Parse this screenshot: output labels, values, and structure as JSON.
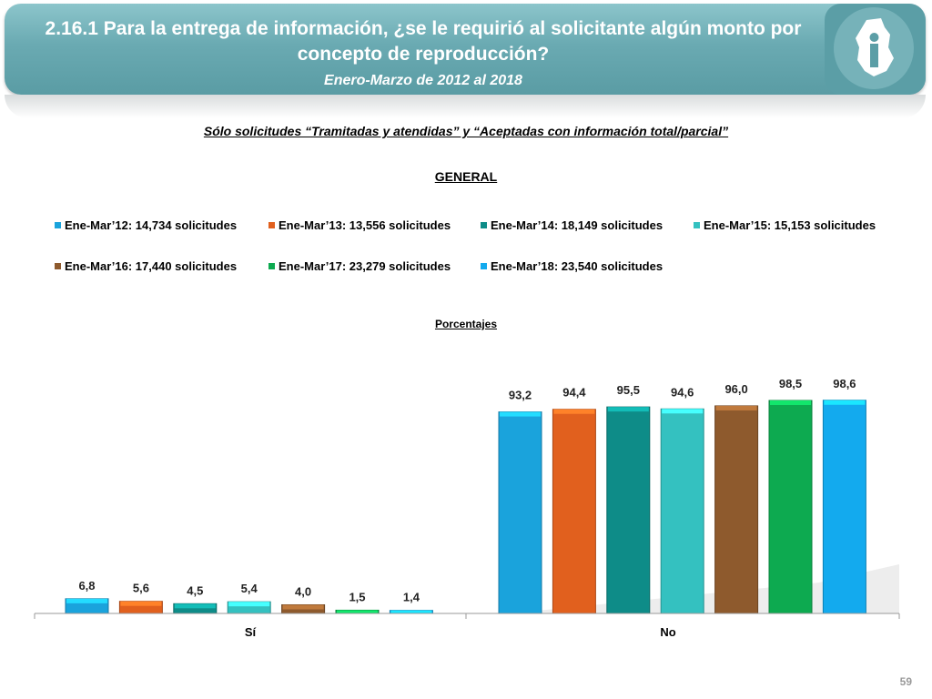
{
  "header": {
    "title": "2.16.1 Para la entrega de información, ¿se le requirió al solicitante algún monto por concepto de reproducción?",
    "subtitle": "Enero-Marzo de 2012 al 2018"
  },
  "filter_note": "Sólo solicitudes “Tramitadas y atendidas” y “Aceptadas con información total/parcial”",
  "page_number": "59",
  "colors": {
    "header": "#6aaab2",
    "s2012": "#1aa3dc",
    "s2013": "#e1601e",
    "s2014": "#0e8c88",
    "s2015": "#34c1c0",
    "s2016": "#8e5a2d",
    "s2017": "#0daa50",
    "s2018": "#13aaee"
  },
  "chart_data": {
    "type": "bar",
    "title": "GENERAL",
    "ylabel": "Porcentajes",
    "categories": [
      "Sí",
      "No"
    ],
    "ylim": [
      0,
      100
    ],
    "grid": false,
    "legend": "top",
    "series": [
      {
        "name": "Ene-Mar’12: 14,734 solicitudes",
        "values": [
          6.8,
          93.2
        ],
        "labels": [
          "6,8",
          "93,2"
        ],
        "color": "#1aa3dc"
      },
      {
        "name": "Ene-Mar’13: 13,556 solicitudes",
        "values": [
          5.6,
          94.4
        ],
        "labels": [
          "5,6",
          "94,4"
        ],
        "color": "#e1601e"
      },
      {
        "name": "Ene-Mar’14: 18,149 solicitudes",
        "values": [
          4.5,
          95.5
        ],
        "labels": [
          "4,5",
          "95,5"
        ],
        "color": "#0e8c88"
      },
      {
        "name": "Ene-Mar’15: 15,153 solicitudes",
        "values": [
          5.4,
          94.6
        ],
        "labels": [
          "5,4",
          "94,6"
        ],
        "color": "#34c1c0"
      },
      {
        "name": "Ene-Mar’16: 17,440 solicitudes",
        "values": [
          4.0,
          96.0
        ],
        "labels": [
          "4,0",
          "96,0"
        ],
        "color": "#8e5a2d"
      },
      {
        "name": "Ene-Mar’17: 23,279 solicitudes",
        "values": [
          1.5,
          98.5
        ],
        "labels": [
          "1,5",
          "98,5"
        ],
        "color": "#0daa50"
      },
      {
        "name": "Ene-Mar’18: 23,540 solicitudes",
        "values": [
          1.4,
          98.6
        ],
        "labels": [
          "1,4",
          "98,6"
        ],
        "color": "#13aaee"
      }
    ]
  }
}
